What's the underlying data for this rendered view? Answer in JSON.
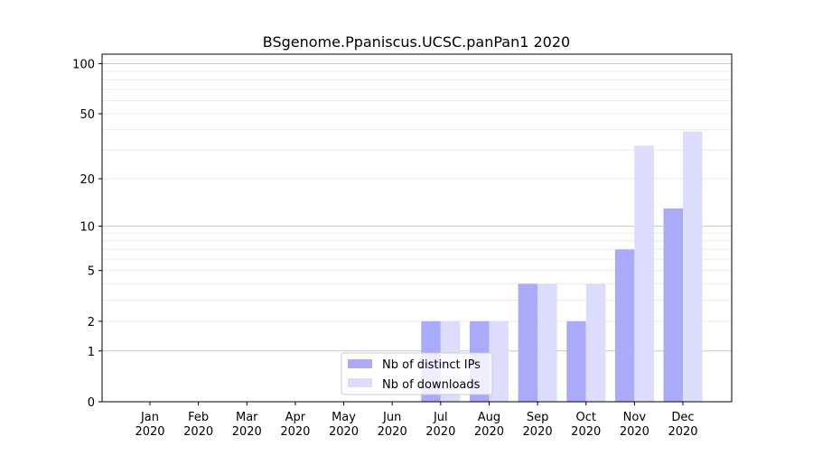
{
  "chart_data": {
    "type": "bar",
    "title": "BSgenome.Ppaniscus.UCSC.panPan1 2020",
    "xlabel": "",
    "ylabel": "",
    "yscale": "log(1+y)",
    "ylim": [
      0,
      114
    ],
    "yticks": [
      0,
      1,
      2,
      5,
      10,
      20,
      50,
      100
    ],
    "grid": true,
    "legend_position": "bottom-center",
    "categories": [
      "Jan\n2020",
      "Feb\n2020",
      "Mar\n2020",
      "Apr\n2020",
      "May\n2020",
      "Jun\n2020",
      "Jul\n2020",
      "Aug\n2020",
      "Sep\n2020",
      "Oct\n2020",
      "Nov\n2020",
      "Dec\n2020"
    ],
    "series": [
      {
        "name": "Nb of distinct IPs",
        "color": "#aaaafb",
        "values": [
          0,
          0,
          0,
          0,
          0,
          0,
          2,
          2,
          4,
          2,
          7,
          13
        ]
      },
      {
        "name": "Nb of downloads",
        "color": "#dcdcfc",
        "values": [
          0,
          0,
          0,
          0,
          0,
          0,
          2,
          2,
          4,
          4,
          32,
          39
        ]
      }
    ]
  }
}
